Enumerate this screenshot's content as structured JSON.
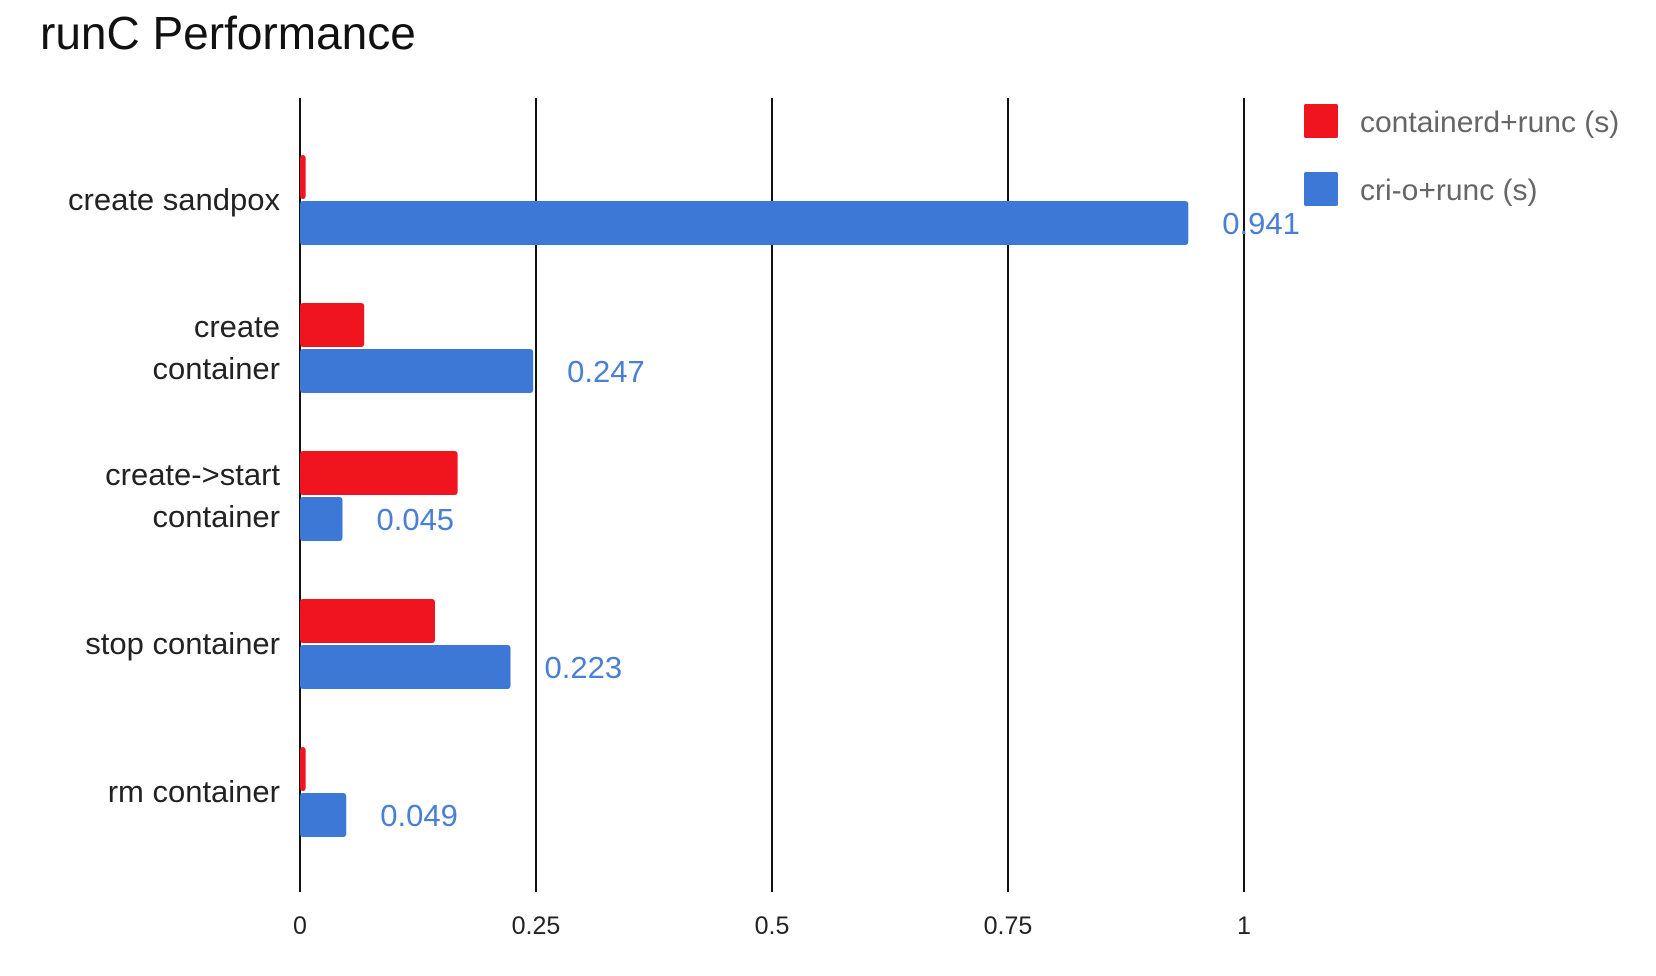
{
  "chart_data": {
    "type": "bar",
    "orientation": "horizontal",
    "title": "runC Performance",
    "categories": [
      [
        "create sandpox"
      ],
      [
        "create",
        "container"
      ],
      [
        "create->start",
        "container"
      ],
      [
        "stop container"
      ],
      [
        "rm container"
      ]
    ],
    "series": [
      {
        "name": "containerd+runc (s)",
        "color": "#f0141e",
        "values": [
          0.006,
          0.068,
          0.167,
          0.143,
          0.006
        ],
        "labels": [
          "",
          "",
          "",
          "",
          ""
        ]
      },
      {
        "name": "cri-o+runc (s)",
        "color": "#3e78d6",
        "values": [
          0.941,
          0.247,
          0.045,
          0.223,
          0.049
        ],
        "labels": [
          "0.941",
          "0.247",
          "0.045",
          "0.223",
          "0.049"
        ]
      }
    ],
    "xlim": [
      0,
      1
    ],
    "xticks": [
      0,
      0.25,
      0.5,
      0.75,
      1
    ],
    "xtick_labels": [
      "0",
      "0.25",
      "0.5",
      "0.75",
      "1"
    ],
    "grid": true,
    "legend_position": "top-right",
    "data_label_color": "#4a7fd6"
  }
}
